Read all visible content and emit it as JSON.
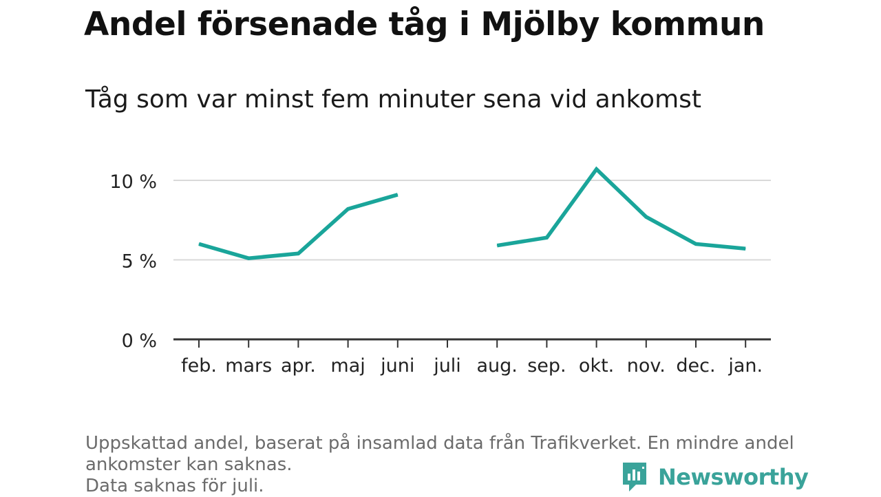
{
  "title": "Andel försenade tåg i Mjölby kommun",
  "subtitle": "Tåg som var minst fem minuter sena vid ankomst",
  "notes": [
    "Uppskattad andel, baserat på insamlad data från Trafikverket. En mindre andel",
    "ankomster kan saknas.",
    "Data saknas för juli."
  ],
  "brand": {
    "name": "Newsworthy",
    "icon": "newsworthy-logo-icon",
    "color": "#3aa39a"
  },
  "chart_data": {
    "type": "line",
    "categories": [
      "feb.",
      "mars",
      "apr.",
      "maj",
      "juni",
      "juli",
      "aug.",
      "sep.",
      "okt.",
      "nov.",
      "dec.",
      "jan."
    ],
    "series": [
      {
        "values": [
          6.0,
          5.1,
          5.4,
          8.2,
          9.1,
          null,
          5.9,
          6.4,
          10.7,
          7.7,
          6.0,
          5.7
        ],
        "color": "#1aa59a"
      }
    ],
    "yticks": [
      0,
      5,
      10
    ],
    "ytick_labels": [
      "0 %",
      "5 %",
      "10 %"
    ],
    "ylim": [
      0,
      11
    ],
    "grid": true,
    "xlabel": "",
    "ylabel": ""
  }
}
